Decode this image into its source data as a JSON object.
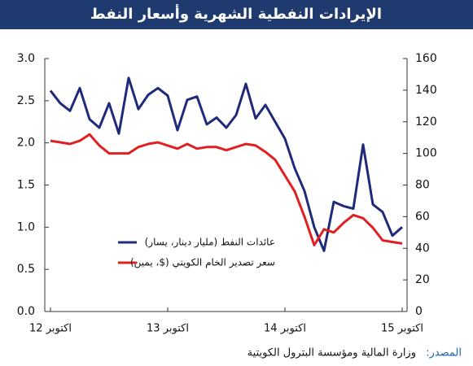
{
  "chart_data": {
    "type": "line",
    "title": "الإيرادات النفطية الشهرية وأسعار النفط",
    "categories": [
      "اكتوبر 12",
      null,
      null,
      null,
      null,
      null,
      null,
      null,
      null,
      null,
      null,
      null,
      "اكتوبر 13",
      null,
      null,
      null,
      null,
      null,
      null,
      null,
      null,
      null,
      null,
      null,
      "اكتوبر 14",
      null,
      null,
      null,
      null,
      null,
      null,
      null,
      null,
      null,
      null,
      null,
      "اكتوبر 15"
    ],
    "series": [
      {
        "name": "عائدات النفط (مليار دينار، يسار)",
        "color": "#1f2b7a",
        "axis": "y",
        "values": [
          2.62,
          2.47,
          2.38,
          2.65,
          2.28,
          2.18,
          2.47,
          2.11,
          2.77,
          2.4,
          2.57,
          2.65,
          2.56,
          2.15,
          2.51,
          2.55,
          2.22,
          2.3,
          2.18,
          2.33,
          2.7,
          2.29,
          2.45,
          2.25,
          2.05,
          1.7,
          1.43,
          1.0,
          0.72,
          1.3,
          1.25,
          1.22,
          1.98,
          1.27,
          1.18,
          0.9,
          1.0
        ]
      },
      {
        "name": "سعر تصدير الخام الكويتي ($، يمين)",
        "color": "#e02020",
        "axis": "y2",
        "values": [
          108,
          107,
          106,
          108,
          112,
          105,
          100,
          100,
          100,
          104,
          106,
          107,
          105,
          103,
          106,
          103,
          104,
          104,
          102,
          104,
          106,
          105,
          101,
          96,
          86,
          76,
          60,
          42,
          52,
          50,
          56,
          61,
          59,
          53,
          45,
          44,
          43
        ]
      }
    ],
    "ylim": [
      0,
      3
    ],
    "yticks": [
      {
        "value": 0,
        "label": "0.0"
      },
      0.5,
      {
        "value": 1,
        "label": "1.0"
      },
      1.5,
      {
        "value": 2,
        "label": "2.0"
      },
      2.5,
      {
        "value": 3,
        "label": "3.0"
      }
    ],
    "y2lim": [
      0,
      160
    ],
    "y2ticks": [
      0,
      20,
      40,
      60,
      80,
      100,
      120,
      140,
      160
    ],
    "source": {
      "label": "المصدر:",
      "text": "وزارة المالية ومؤسسة البترول الكويتية"
    }
  }
}
